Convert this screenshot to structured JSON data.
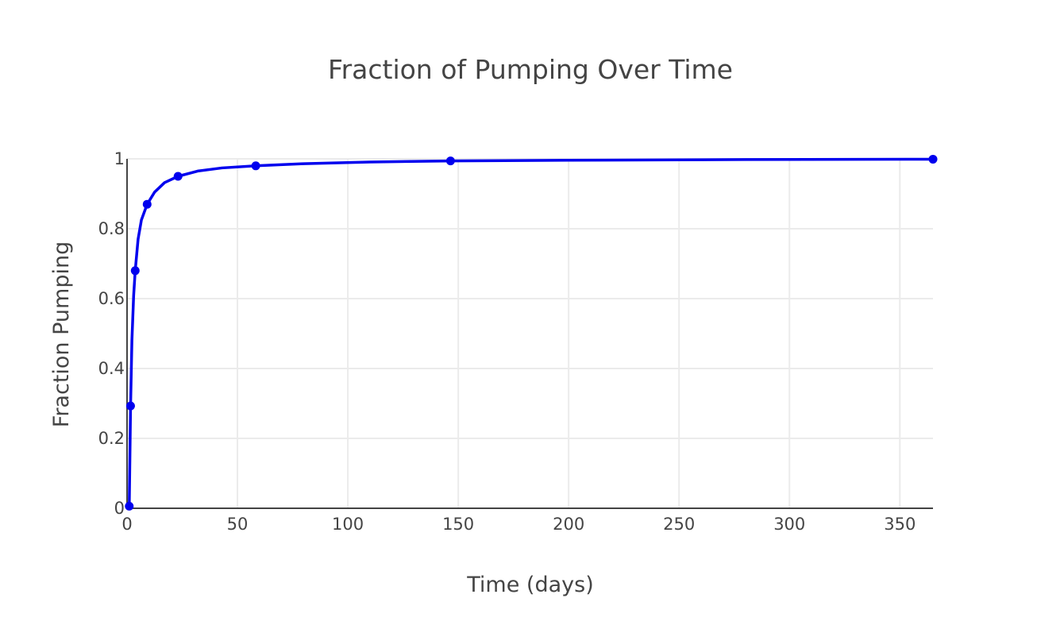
{
  "chart_data": {
    "type": "line",
    "title": "Fraction of Pumping Over Time",
    "xlabel": "Time (days)",
    "ylabel": "Fraction Pumping",
    "xlim": [
      0,
      365
    ],
    "ylim": [
      0,
      1
    ],
    "x_ticks": [
      0,
      50,
      100,
      150,
      200,
      250,
      300,
      350
    ],
    "x_tick_labels": [
      "0",
      "50",
      "100",
      "150",
      "200",
      "250",
      "300",
      "350"
    ],
    "y_ticks": [
      0,
      0.2,
      0.4,
      0.6,
      0.8,
      1
    ],
    "y_tick_labels": [
      "0",
      "0.2",
      "0.4",
      "0.6",
      "0.8",
      "1"
    ],
    "grid": true,
    "legend": "none",
    "series": [
      {
        "color": "#0000ee",
        "markers": [
          {
            "x": 1.0,
            "y": 0.006
          },
          {
            "x": 1.6,
            "y": 0.293
          },
          {
            "x": 3.7,
            "y": 0.68
          },
          {
            "x": 9.1,
            "y": 0.87
          },
          {
            "x": 23.1,
            "y": 0.95
          },
          {
            "x": 58.3,
            "y": 0.98
          },
          {
            "x": 146.5,
            "y": 0.994
          },
          {
            "x": 365,
            "y": 0.999
          }
        ],
        "curve": [
          {
            "x": 0.8,
            "y": 0.0
          },
          {
            "x": 1.0,
            "y": 0.006
          },
          {
            "x": 1.3,
            "y": 0.15
          },
          {
            "x": 1.6,
            "y": 0.293
          },
          {
            "x": 2.2,
            "y": 0.48
          },
          {
            "x": 3.0,
            "y": 0.61
          },
          {
            "x": 3.7,
            "y": 0.68
          },
          {
            "x": 5.0,
            "y": 0.77
          },
          {
            "x": 6.5,
            "y": 0.825
          },
          {
            "x": 9.1,
            "y": 0.87
          },
          {
            "x": 12.5,
            "y": 0.905
          },
          {
            "x": 17.0,
            "y": 0.932
          },
          {
            "x": 23.1,
            "y": 0.95
          },
          {
            "x": 32.0,
            "y": 0.965
          },
          {
            "x": 43.0,
            "y": 0.974
          },
          {
            "x": 58.3,
            "y": 0.98
          },
          {
            "x": 80.0,
            "y": 0.986
          },
          {
            "x": 110.0,
            "y": 0.991
          },
          {
            "x": 146.5,
            "y": 0.994
          },
          {
            "x": 200.0,
            "y": 0.996
          },
          {
            "x": 280.0,
            "y": 0.998
          },
          {
            "x": 365.0,
            "y": 0.999
          }
        ]
      }
    ]
  }
}
